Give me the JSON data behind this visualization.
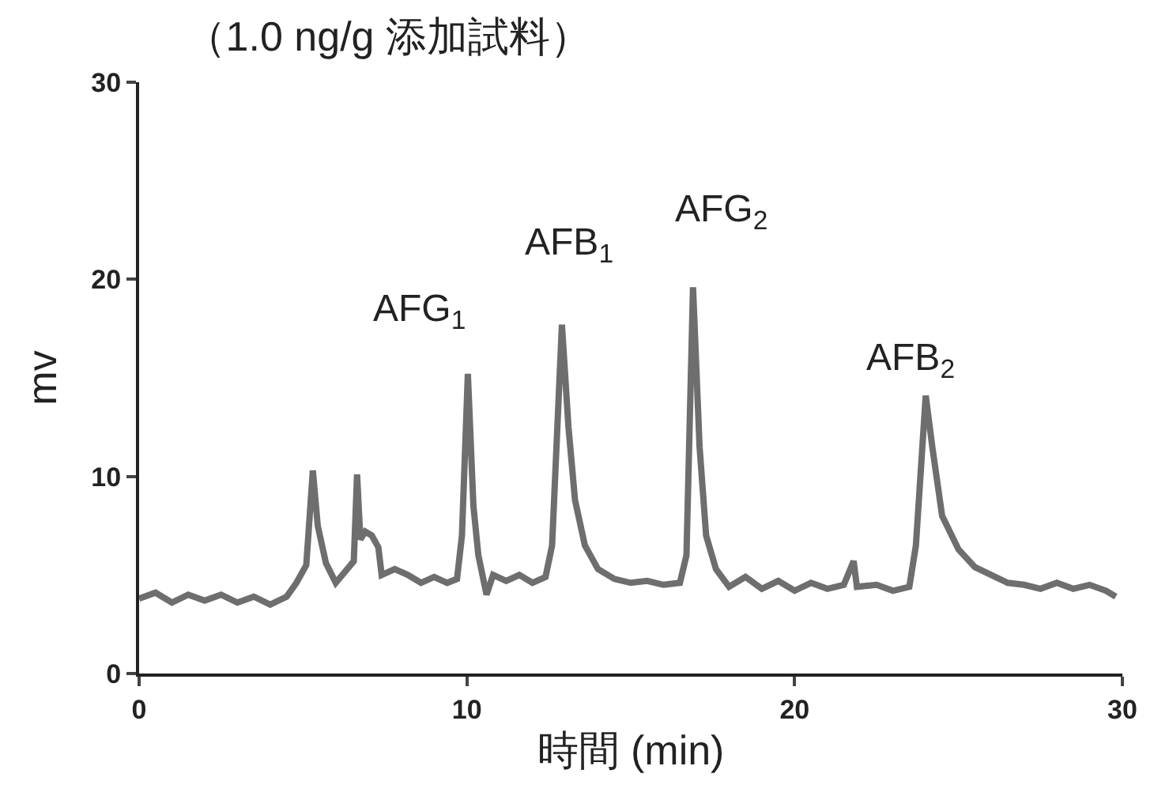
{
  "chart_data": {
    "type": "line",
    "title": "（1.0 ng/g 添加試料）",
    "xlabel": "時間 (min)",
    "ylabel": "mv",
    "x": [
      0,
      0.5,
      1,
      1.5,
      2,
      2.5,
      3,
      3.5,
      4,
      4.5,
      4.8,
      5.1,
      5.3,
      5.45,
      5.7,
      6.0,
      6.3,
      6.55,
      6.65,
      6.75,
      6.9,
      7.1,
      7.3,
      7.4,
      7.8,
      8.2,
      8.6,
      9.0,
      9.4,
      9.7,
      9.85,
      10.03,
      10.2,
      10.35,
      10.6,
      10.8,
      11.2,
      11.6,
      12.0,
      12.4,
      12.6,
      12.9,
      13.1,
      13.3,
      13.6,
      14.0,
      14.5,
      15.0,
      15.5,
      16.0,
      16.5,
      16.7,
      16.9,
      17.1,
      17.3,
      17.6,
      18.0,
      18.5,
      19.0,
      19.5,
      20.0,
      20.5,
      21.0,
      21.5,
      21.8,
      21.9,
      22.5,
      23.0,
      23.5,
      23.7,
      24.0,
      24.2,
      24.5,
      25.0,
      25.5,
      26.0,
      26.5,
      27.0,
      27.5,
      28.0,
      28.5,
      29.0,
      29.5,
      29.8
    ],
    "series": [
      {
        "color": "#6e6e6e",
        "values": [
          3.8,
          4.1,
          3.6,
          4.0,
          3.7,
          4.0,
          3.6,
          3.9,
          3.5,
          3.9,
          4.6,
          5.5,
          10.3,
          7.5,
          5.6,
          4.6,
          5.2,
          5.7,
          10.1,
          6.8,
          7.2,
          7.0,
          6.4,
          5.0,
          5.3,
          5.0,
          4.6,
          4.9,
          4.6,
          4.8,
          7.0,
          15.2,
          8.5,
          6.0,
          4.0,
          5.0,
          4.7,
          5.0,
          4.6,
          4.9,
          6.5,
          17.7,
          12.5,
          8.8,
          6.5,
          5.3,
          4.8,
          4.6,
          4.7,
          4.5,
          4.6,
          6.0,
          19.6,
          11.5,
          7.0,
          5.3,
          4.4,
          4.9,
          4.3,
          4.7,
          4.2,
          4.6,
          4.3,
          4.5,
          5.7,
          4.4,
          4.5,
          4.2,
          4.4,
          6.5,
          14.1,
          11.5,
          8.0,
          6.3,
          5.4,
          5.0,
          4.6,
          4.5,
          4.3,
          4.6,
          4.3,
          4.5,
          4.2,
          3.9
        ]
      }
    ],
    "xlim": [
      0,
      30
    ],
    "xticks": [
      0,
      10,
      20,
      30
    ],
    "ylim": [
      0,
      30
    ],
    "yticks": [
      0,
      10,
      20,
      30
    ],
    "marker": "none",
    "line_style": "solid",
    "annotations": [
      {
        "text": "AFG$_{1}$",
        "x": 10.03,
        "y": 15.2
      },
      {
        "text": "AFB$_{1}$",
        "x": 12.9,
        "y": 17.7
      },
      {
        "text": "AFG$_{2}$",
        "x": 16.9,
        "y": 19.6
      },
      {
        "text": "AFB$_{2}$",
        "x": 24.0,
        "y": 14.1
      }
    ]
  }
}
